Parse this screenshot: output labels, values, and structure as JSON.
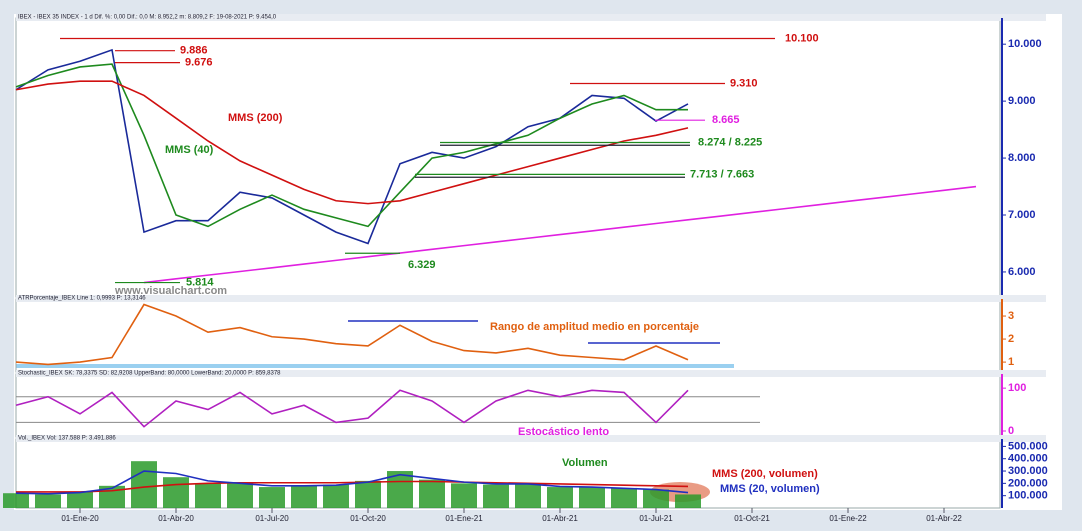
{
  "chart_data": [
    {
      "type": "line",
      "title": "IBEX - IBEX 35 INDEX - 1 d  Dif. %: 0,00  Dif.: 0,0  M: 8.952,2  m: 8.809,2  F: 19-08-2021  P: 9.454,0",
      "ylim": [
        5560,
        10460
      ],
      "yticks": [
        {
          "value": 6000,
          "label": "6.000"
        },
        {
          "value": 7000,
          "label": "7.000"
        },
        {
          "value": 8000,
          "label": "8.000"
        },
        {
          "value": 9000,
          "label": "9.000"
        },
        {
          "value": 10000,
          "label": "10.000"
        }
      ],
      "series": [
        {
          "color": "#1a2a9a",
          "values": [
            9200,
            9550,
            9700,
            9900,
            6700,
            6900,
            6900,
            7400,
            7300,
            7000,
            6700,
            6500,
            7900,
            8100,
            8000,
            8200,
            8550,
            8700,
            9100,
            9050,
            8650,
            8950,
            null,
            null,
            null,
            null,
            null,
            null,
            null,
            null,
            null
          ]
        },
        {
          "name": "MMS (40)",
          "color": "#1e8a1e",
          "values": [
            9250,
            9450,
            9600,
            9650,
            8400,
            7000,
            6800,
            7100,
            7350,
            7100,
            6950,
            6800,
            7400,
            8000,
            8100,
            8250,
            8400,
            8700,
            8950,
            9100,
            8850,
            8850,
            null,
            null,
            null,
            null,
            null,
            null,
            null,
            null,
            null
          ]
        },
        {
          "name": "MMS (200)",
          "color": "#d01010",
          "values": [
            9200,
            9300,
            9350,
            9350,
            9100,
            8700,
            8300,
            7950,
            7700,
            7450,
            7250,
            7200,
            7250,
            7400,
            7550,
            7700,
            7850,
            8000,
            8150,
            8300,
            8400,
            8530,
            null,
            null,
            null,
            null,
            null,
            null,
            null,
            null,
            null
          ]
        },
        {
          "color": "#e020e0",
          "values": [
            null,
            null,
            null,
            null,
            5814,
            5879,
            5944,
            6008,
            6073,
            6138,
            6203,
            6268,
            6332,
            6397,
            6462,
            6527,
            6592,
            6656,
            6721,
            6786,
            6851,
            6916,
            6980,
            7045,
            7110,
            7175,
            7240,
            7304,
            7369,
            7434,
            7499
          ]
        }
      ],
      "levels": [
        {
          "label": "10.100",
          "values": [
            10100
          ],
          "color": "#d01010"
        },
        {
          "label": "9.886",
          "values": [
            9886
          ],
          "color": "#d01010"
        },
        {
          "label": "9.676",
          "values": [
            9676
          ],
          "color": "#d01010"
        },
        {
          "label": "9.310",
          "values": [
            9310
          ],
          "color": "#d01010"
        },
        {
          "label": "8.665",
          "values": [
            8665
          ],
          "color": "#e020e0"
        },
        {
          "label": "8.274 / 8.225",
          "values": [
            8274,
            8225
          ],
          "color": "#1e8a1e"
        },
        {
          "label": "7.713 / 7.663",
          "values": [
            7713,
            7663
          ],
          "color": "#1e8a1e"
        },
        {
          "label": "6.329",
          "values": [
            6329
          ],
          "color": "#1e8a1e"
        },
        {
          "label": "5.814",
          "values": [
            5814
          ],
          "color": "#1e8a1e"
        }
      ],
      "annotations": [
        "www.visualchart.com"
      ]
    },
    {
      "type": "line",
      "title": "ATRPorcentaje_IBEX  Line 1: 0,9993  P: 13,3146",
      "ylim": [
        0.57,
        3.74
      ],
      "yticks": [
        1,
        2,
        3
      ],
      "series": [
        {
          "color": "#e06010",
          "values": [
            1.0,
            0.9,
            1.0,
            1.2,
            3.5,
            3.0,
            2.3,
            2.5,
            2.1,
            2.0,
            1.8,
            1.7,
            2.6,
            1.9,
            1.5,
            1.4,
            1.6,
            1.3,
            1.2,
            1.1,
            1.7,
            1.1,
            null,
            null,
            null,
            null,
            null,
            null,
            null,
            null,
            null
          ]
        }
      ],
      "annotations": [
        "Rango de amplitud medio en porcentaje"
      ]
    },
    {
      "type": "line",
      "title": "Stochastic_IBEX  SK: 78,3375  SD: 82,9208  UpperBand: 80,0000  LowerBand: 20,0000  P: 859,8378",
      "ylim": [
        -14,
        133
      ],
      "yticks": [
        0,
        100
      ],
      "bands": [
        20,
        80
      ],
      "series": [
        {
          "color": "#b020c0",
          "values": [
            60,
            80,
            40,
            90,
            10,
            70,
            50,
            90,
            40,
            60,
            20,
            30,
            95,
            70,
            20,
            70,
            95,
            80,
            95,
            90,
            20,
            95,
            null,
            null,
            null,
            null,
            null,
            null,
            null,
            null,
            null
          ]
        }
      ],
      "annotations": [
        "Estocástico lento"
      ]
    },
    {
      "type": "bar",
      "title": "Vol._IBEX  Vol: 137.588  P: 3.491.886",
      "ylim": [
        0,
        560000
      ],
      "yticks": [
        {
          "value": 100000,
          "label": "100.000"
        },
        {
          "value": 200000,
          "label": "200.000"
        },
        {
          "value": 300000,
          "label": "300.000"
        },
        {
          "value": 400000,
          "label": "400.000"
        },
        {
          "value": 500000,
          "label": "500.000"
        }
      ],
      "categories": [
        null,
        null,
        "01-Ene-20",
        null,
        null,
        "01-Abr-20",
        null,
        null,
        "01-Jul-20",
        null,
        null,
        "01-Oct-20",
        null,
        null,
        "01-Ene-21",
        null,
        null,
        "01-Abr-21",
        null,
        null,
        "01-Jul-21",
        null,
        null,
        "01-Oct-21",
        null,
        null,
        "01-Ene-22",
        null,
        null,
        "01-Abr-22",
        null
      ],
      "color": "#2a9a2a",
      "values": [
        120000,
        110000,
        130000,
        180000,
        380000,
        250000,
        200000,
        200000,
        170000,
        180000,
        190000,
        220000,
        300000,
        230000,
        200000,
        190000,
        200000,
        170000,
        170000,
        160000,
        150000,
        110000,
        null,
        null,
        null,
        null,
        null,
        null,
        null,
        null,
        null
      ],
      "series": [
        {
          "name": "MMS (200, volumen)",
          "color": "#d01010",
          "values": [
            130000,
            130000,
            130000,
            140000,
            170000,
            190000,
            200000,
            205000,
            205000,
            205000,
            205000,
            210000,
            215000,
            215000,
            210000,
            205000,
            200000,
            195000,
            190000,
            185000,
            180000,
            175000,
            null,
            null,
            null,
            null,
            null,
            null,
            null,
            null,
            null
          ]
        },
        {
          "name": "MMS (20, volumen)",
          "color": "#2030c0",
          "values": [
            120000,
            115000,
            125000,
            160000,
            300000,
            280000,
            220000,
            200000,
            180000,
            180000,
            185000,
            210000,
            270000,
            240000,
            210000,
            195000,
            195000,
            175000,
            170000,
            160000,
            150000,
            125000,
            null,
            null,
            null,
            null,
            null,
            null,
            null,
            null,
            null
          ]
        }
      ],
      "annotations": [
        "Volumen"
      ]
    }
  ]
}
